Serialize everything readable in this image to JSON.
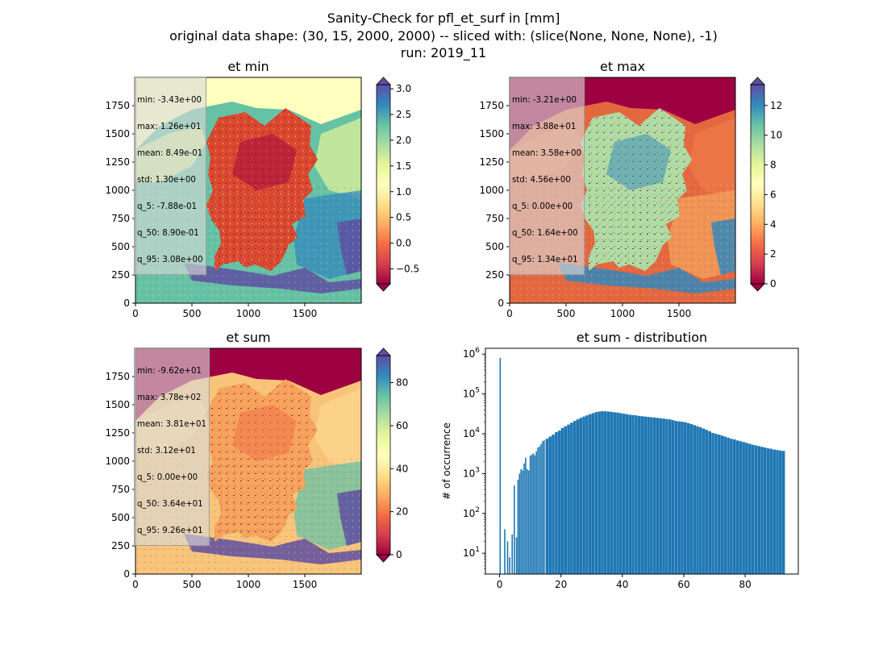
{
  "figure": {
    "title_lines": [
      "Sanity-Check for pfl_et_surf in [mm]",
      "original data shape: (30, 15, 2000, 2000) -- sliced with: (slice(None, None, None), -1)",
      "run: 2019_11"
    ]
  },
  "chart_data": [
    {
      "type": "heatmap",
      "title": "et min",
      "xlim": [
        0,
        2000
      ],
      "ylim": [
        0,
        2000
      ],
      "xticks": [
        "0",
        "500",
        "1000",
        "1500"
      ],
      "yticks": [
        "0",
        "250",
        "500",
        "750",
        "1000",
        "1250",
        "1500",
        "1750"
      ],
      "colormap": "Spectral",
      "colorbar_range": [
        -0.79,
        3.08
      ],
      "colorbar_ticks": [
        "−0.5",
        "0.0",
        "0.5",
        "1.0",
        "1.5",
        "2.0",
        "2.5",
        "3.0"
      ],
      "colorbar_extend": "both",
      "stats": [
        "min: -3.43e+00",
        "max: 1.26e+01",
        "mean: 8.49e-01",
        "std: 1.30e+00",
        "q_5: -7.88e-01",
        "q_50: 8.90e-01",
        "q_95: 3.08e+00"
      ]
    },
    {
      "type": "heatmap",
      "title": "et max",
      "xlim": [
        0,
        2000
      ],
      "ylim": [
        0,
        2000
      ],
      "xticks": [
        "0",
        "500",
        "1000",
        "1500"
      ],
      "yticks": [
        "0",
        "250",
        "500",
        "750",
        "1000",
        "1250",
        "1500",
        "1750"
      ],
      "colormap": "Spectral",
      "colorbar_range": [
        0,
        13.4
      ],
      "colorbar_ticks": [
        "0",
        "2",
        "4",
        "6",
        "8",
        "10",
        "12"
      ],
      "colorbar_extend": "both",
      "stats": [
        "min: -3.21e+00",
        "max: 3.88e+01",
        "mean: 3.58e+00",
        "std: 4.56e+00",
        "q_5: 0.00e+00",
        "q_50: 1.64e+00",
        "q_95: 1.34e+01"
      ]
    },
    {
      "type": "heatmap",
      "title": "et sum",
      "xlim": [
        0,
        2000
      ],
      "ylim": [
        0,
        2000
      ],
      "xticks": [
        "0",
        "500",
        "1000",
        "1500"
      ],
      "yticks": [
        "0",
        "250",
        "500",
        "750",
        "1000",
        "1250",
        "1500",
        "1750"
      ],
      "colormap": "Spectral",
      "colorbar_range": [
        0,
        92.6
      ],
      "colorbar_ticks": [
        "0",
        "20",
        "40",
        "60",
        "80"
      ],
      "colorbar_extend": "both",
      "stats": [
        "min: -9.62e+01",
        "max: 3.78e+02",
        "mean: 3.81e+01",
        "std: 3.12e+01",
        "q_5: 0.00e+00",
        "q_50: 3.64e+01",
        "q_95: 9.26e+01"
      ]
    },
    {
      "type": "bar",
      "title": "et sum - distribution",
      "xlabel": "",
      "ylabel": "# of occurrence",
      "yscale": "log",
      "xlim": [
        -4.6,
        97.3
      ],
      "ylim": [
        3,
        1400000
      ],
      "xticks": [
        "0",
        "20",
        "40",
        "60",
        "80"
      ],
      "yticks": [
        "10^1",
        "10^2",
        "10^3",
        "10^4",
        "10^5",
        "10^6"
      ],
      "color": "#1f77b4",
      "bin_width": 0.463,
      "points": [
        [
          0,
          800000
        ],
        [
          1.5,
          40
        ],
        [
          2.4,
          20
        ],
        [
          3.1,
          8
        ],
        [
          3.9,
          30
        ],
        [
          4.6,
          500
        ],
        [
          5.3,
          25
        ],
        [
          5.8,
          700
        ],
        [
          6.3,
          1000
        ],
        [
          6.8,
          1300
        ],
        [
          7.3,
          1200
        ],
        [
          7.8,
          1800
        ],
        [
          8.3,
          2500
        ],
        [
          8.8,
          1300
        ],
        [
          9.3,
          1200
        ],
        [
          9.8,
          2800
        ],
        [
          10.3,
          3000
        ],
        [
          10.8,
          3200
        ],
        [
          11.3,
          2900
        ],
        [
          11.8,
          3600
        ],
        [
          12.3,
          4500
        ],
        [
          12.8,
          4800
        ],
        [
          13.3,
          5500
        ],
        [
          13.8,
          6500
        ],
        [
          14.3,
          6800
        ],
        [
          15.0,
          7500
        ],
        [
          16,
          8500
        ],
        [
          17,
          9500
        ],
        [
          18,
          11000
        ],
        [
          19,
          12000
        ],
        [
          20,
          14000
        ],
        [
          21,
          15500
        ],
        [
          22,
          17000
        ],
        [
          23,
          19000
        ],
        [
          24,
          21000
        ],
        [
          25,
          23000
        ],
        [
          26,
          25000
        ],
        [
          27,
          27000
        ],
        [
          28,
          29000
        ],
        [
          29,
          31000
        ],
        [
          30,
          33000
        ],
        [
          31,
          35000
        ],
        [
          32,
          36000
        ],
        [
          33,
          37000
        ],
        [
          34,
          36500
        ],
        [
          35,
          36000
        ],
        [
          36,
          35500
        ],
        [
          37,
          34500
        ],
        [
          38,
          34000
        ],
        [
          39,
          33000
        ],
        [
          40,
          32000
        ],
        [
          41,
          31000
        ],
        [
          42,
          30000
        ],
        [
          43,
          29500
        ],
        [
          44,
          29000
        ],
        [
          45,
          28000
        ],
        [
          46,
          27500
        ],
        [
          47,
          27000
        ],
        [
          48,
          26500
        ],
        [
          49,
          26000
        ],
        [
          50,
          25500
        ],
        [
          51,
          25000
        ],
        [
          52,
          24500
        ],
        [
          53,
          24000
        ],
        [
          54,
          23500
        ],
        [
          55,
          23000
        ],
        [
          56,
          22000
        ],
        [
          57,
          21000
        ],
        [
          58,
          20500
        ],
        [
          59,
          20000
        ],
        [
          60,
          19500
        ],
        [
          61,
          18500
        ],
        [
          62,
          17500
        ],
        [
          63,
          16500
        ],
        [
          64,
          15500
        ],
        [
          65,
          14500
        ],
        [
          66,
          13500
        ],
        [
          67,
          12500
        ],
        [
          68,
          11500
        ],
        [
          69,
          10500
        ],
        [
          70,
          10000
        ],
        [
          71,
          9500
        ],
        [
          72,
          9000
        ],
        [
          73,
          8500
        ],
        [
          74,
          8000
        ],
        [
          75,
          7500
        ],
        [
          76,
          7200
        ],
        [
          77,
          6800
        ],
        [
          78,
          6500
        ],
        [
          79,
          6200
        ],
        [
          80,
          5900
        ],
        [
          81,
          5600
        ],
        [
          82,
          5300
        ],
        [
          83,
          5100
        ],
        [
          84,
          4900
        ],
        [
          85,
          4700
        ],
        [
          86,
          4500
        ],
        [
          87,
          4300
        ],
        [
          88,
          4200
        ],
        [
          89,
          4000
        ],
        [
          90,
          3900
        ],
        [
          91,
          3800
        ],
        [
          92,
          3700
        ]
      ]
    }
  ]
}
